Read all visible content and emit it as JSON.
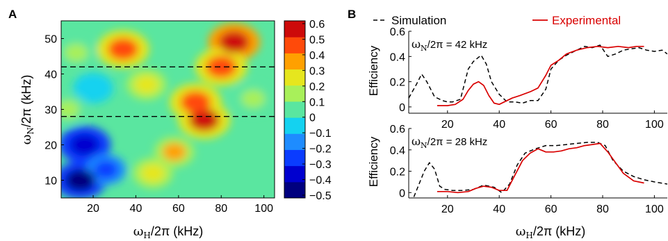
{
  "panels": {
    "a_label": "A",
    "b_label": "B"
  },
  "chart_data": [
    {
      "type": "heatmap",
      "panel": "A",
      "xlabel_symbol": "ω",
      "xlabel_sub": "H",
      "xlabel_rest": "/2π (kHz)",
      "ylabel_symbol": "ω",
      "ylabel_sub": "N",
      "ylabel_rest": "/2π (kHz)",
      "xlim": [
        5,
        105
      ],
      "ylim": [
        5,
        55
      ],
      "xticks": [
        20,
        40,
        60,
        80,
        100
      ],
      "yticks": [
        10,
        20,
        30,
        40,
        50
      ],
      "colorbar": {
        "levels": [
          -0.5,
          -0.4,
          -0.3,
          -0.2,
          -0.1,
          0,
          0.1,
          0.2,
          0.3,
          0.4,
          0.5,
          0.6
        ],
        "tick_labels": [
          "0.6",
          "0.5",
          "0.4",
          "0.3",
          "0.2",
          "0.1",
          "0",
          "−0.1",
          "−0.2",
          "−0.3",
          "−0.4",
          "−0.5"
        ],
        "colors": [
          "#00007f",
          "#0000cf",
          "#0a3cff",
          "#1e8cff",
          "#14d2f0",
          "#5ae6a0",
          "#a8f05a",
          "#e6e61e",
          "#ffa000",
          "#ff4a0a",
          "#cd0a0a"
        ]
      },
      "cut_lines_y": [
        42,
        28
      ],
      "features": [
        {
          "x": 16,
          "y": 20,
          "value": -0.4
        },
        {
          "x": 14,
          "y": 10,
          "value": -0.5
        },
        {
          "x": 26,
          "y": 13,
          "value": -0.3
        },
        {
          "x": 20,
          "y": 36,
          "value": -0.1
        },
        {
          "x": 34,
          "y": 47,
          "value": 0.45
        },
        {
          "x": 45,
          "y": 37,
          "value": 0.2
        },
        {
          "x": 72,
          "y": 27,
          "value": 0.5
        },
        {
          "x": 68,
          "y": 32,
          "value": 0.45
        },
        {
          "x": 86,
          "y": 49,
          "value": 0.6
        },
        {
          "x": 80,
          "y": 42,
          "value": 0.4
        },
        {
          "x": 58,
          "y": 18,
          "value": 0.3
        },
        {
          "x": 48,
          "y": 12,
          "value": 0.2
        },
        {
          "x": 95,
          "y": 33,
          "value": 0.1
        },
        {
          "x": 8,
          "y": 30,
          "value": 0.1
        },
        {
          "x": 12,
          "y": 46,
          "value": 0.1
        }
      ]
    },
    {
      "type": "line",
      "panel": "B",
      "annotation_symbol": "ω",
      "annotation_sub": "N",
      "annotation_rest": "/2π = 42 kHz",
      "ylabel": "Efficiency",
      "xlim": [
        5,
        105
      ],
      "ylim": [
        -0.05,
        0.6
      ],
      "xticks": [
        20,
        40,
        60,
        80,
        100
      ],
      "yticks": [
        0,
        0.2,
        0.4,
        0.6
      ],
      "ytick_labels": [
        "0",
        "0.2",
        "0.4",
        "0.6"
      ],
      "series": [
        {
          "name": "Simulation",
          "style": "dashed",
          "color": "#000000",
          "x": [
            5,
            8,
            10,
            12,
            15,
            18,
            20,
            22,
            25,
            28,
            30,
            33,
            35,
            37,
            40,
            43,
            46,
            49,
            52,
            55,
            58,
            60,
            63,
            66,
            70,
            73,
            76,
            79,
            82,
            85,
            88,
            91,
            94,
            97,
            100,
            103,
            105
          ],
          "y": [
            0.07,
            0.18,
            0.26,
            0.2,
            0.08,
            0.05,
            0.04,
            0.04,
            0.06,
            0.3,
            0.36,
            0.41,
            0.34,
            0.2,
            0.1,
            0.04,
            0.04,
            0.03,
            0.05,
            0.05,
            0.14,
            0.3,
            0.37,
            0.41,
            0.45,
            0.48,
            0.47,
            0.49,
            0.4,
            0.42,
            0.45,
            0.46,
            0.47,
            0.45,
            0.44,
            0.45,
            0.42
          ]
        },
        {
          "name": "Experimental",
          "style": "solid",
          "color": "#d90000",
          "x": [
            16,
            20,
            23,
            26,
            28,
            30,
            32,
            34,
            36,
            38,
            40,
            42,
            45,
            48,
            52,
            55,
            58,
            60,
            63,
            66,
            70,
            74,
            78,
            82,
            86,
            90,
            93,
            96
          ],
          "y": [
            0.01,
            0.01,
            0.02,
            0.06,
            0.13,
            0.18,
            0.2,
            0.17,
            0.09,
            0.03,
            0.02,
            0.04,
            0.07,
            0.09,
            0.12,
            0.15,
            0.25,
            0.33,
            0.37,
            0.42,
            0.45,
            0.47,
            0.48,
            0.47,
            0.48,
            0.47,
            0.48,
            0.48
          ]
        }
      ]
    },
    {
      "type": "line",
      "panel": "B",
      "annotation_symbol": "ω",
      "annotation_sub": "N",
      "annotation_rest": "/2π = 28 kHz",
      "ylabel": "Efficiency",
      "xlabel_symbol": "ω",
      "xlabel_sub": "H",
      "xlabel_rest": "/2π (kHz)",
      "xlim": [
        5,
        105
      ],
      "ylim": [
        -0.05,
        0.6
      ],
      "xticks": [
        20,
        40,
        60,
        80,
        100
      ],
      "yticks": [
        0,
        0.2,
        0.4,
        0.6
      ],
      "ytick_labels": [
        "0",
        "0.2",
        "0.4",
        "0.6"
      ],
      "series": [
        {
          "name": "Simulation",
          "style": "dashed",
          "color": "#000000",
          "x": [
            7,
            9,
            11,
            13,
            15,
            17,
            19,
            22,
            26,
            30,
            34,
            38,
            41,
            44,
            47,
            50,
            54,
            58,
            62,
            66,
            70,
            74,
            78,
            81,
            84,
            88,
            92,
            96,
            100,
            105
          ],
          "y": [
            -0.04,
            0.08,
            0.2,
            0.28,
            0.22,
            0.06,
            0.03,
            0.02,
            0.02,
            0.03,
            0.07,
            0.05,
            0.0,
            0.08,
            0.26,
            0.37,
            0.41,
            0.44,
            0.44,
            0.45,
            0.46,
            0.47,
            0.47,
            0.44,
            0.3,
            0.2,
            0.15,
            0.12,
            0.1,
            0.08
          ]
        },
        {
          "name": "Experimental",
          "style": "solid",
          "color": "#d90000",
          "x": [
            16,
            20,
            24,
            28,
            31,
            34,
            37,
            40,
            43,
            46,
            49,
            52,
            55,
            58,
            61,
            64,
            67,
            70,
            73,
            76,
            79,
            82,
            85,
            88,
            92,
            96
          ],
          "y": [
            0.01,
            0.01,
            0.0,
            0.01,
            0.04,
            0.06,
            0.05,
            0.02,
            0.02,
            0.16,
            0.3,
            0.37,
            0.41,
            0.38,
            0.38,
            0.39,
            0.41,
            0.42,
            0.44,
            0.45,
            0.46,
            0.38,
            0.28,
            0.18,
            0.11,
            0.09
          ]
        }
      ]
    }
  ],
  "legend": {
    "simulation": "Simulation",
    "experimental": "Experimental"
  }
}
